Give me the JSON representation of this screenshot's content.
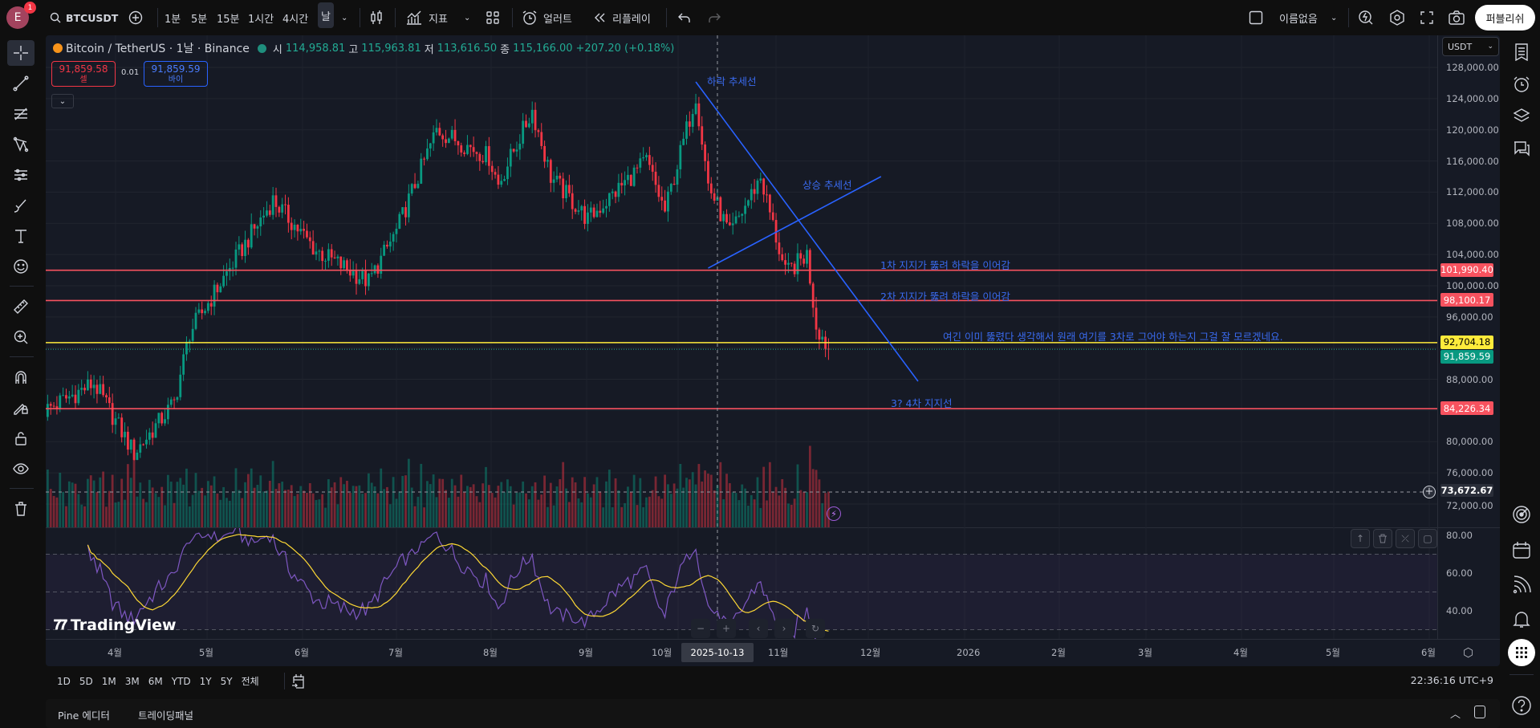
{
  "topbar": {
    "avatar_letter": "E",
    "notification_count": "1",
    "symbol": "BTCUSDT",
    "intervals": [
      "1분",
      "5분",
      "15분",
      "1시간",
      "4시간",
      "날"
    ],
    "active_interval": "날",
    "indicators_label": "지표",
    "alert_label": "얼러트",
    "replay_label": "리플레이",
    "layout_name": "이름없음",
    "publish_label": "퍼블리쉬"
  },
  "legend": {
    "title": "Bitcoin / TetherUS · 1날 · Binance",
    "open_label": "시",
    "open": "114,958.81",
    "high_label": "고",
    "high": "115,963.81",
    "low_label": "저",
    "low": "113,616.50",
    "close_label": "종",
    "close": "115,166.00",
    "change": "+207.20 (+0.18%)",
    "sell_price": "91,859.58",
    "sell_label": "셀",
    "spread": "0.01",
    "buy_price": "91,859.59",
    "buy_label": "바이"
  },
  "currency": "USDT",
  "price_axis": [
    "128,000.00",
    "124,000.00",
    "120,000.00",
    "116,000.00",
    "112,000.00",
    "108,000.00",
    "104,000.00",
    "100,000.00",
    "96,000.00",
    "88,000.00",
    "80,000.00",
    "76,000.00",
    "72,000.00"
  ],
  "rsi_axis": [
    "80.00",
    "60.00",
    "40.00"
  ],
  "time_axis": [
    "4월",
    "5월",
    "6월",
    "7월",
    "8월",
    "9월",
    "10월",
    "11월",
    "12월",
    "2026",
    "2월",
    "3월",
    "4월",
    "5월",
    "6월"
  ],
  "crosshair": {
    "date": "2025-10-13",
    "price": "73,672.67"
  },
  "colors": {
    "up": "#089981",
    "down": "#f23645",
    "support": "#f7525f",
    "highlight": "#ffeb3b",
    "trendline": "#2962ff",
    "rsi": "#7e57c2",
    "rsi_ma": "#fdd835"
  },
  "chart_data": {
    "type": "candlestick",
    "interval": "1D",
    "last_price": 91859.59,
    "price_range": [
      70000,
      130000
    ],
    "price_path": [
      [
        "2025-03-09",
        84000
      ],
      [
        "2025-03-25",
        87500
      ],
      [
        "2025-04-07",
        78500
      ],
      [
        "2025-04-20",
        85000
      ],
      [
        "2025-04-25",
        94000
      ],
      [
        "2025-05-10",
        103500
      ],
      [
        "2025-05-22",
        111000
      ],
      [
        "2025-06-05",
        104500
      ],
      [
        "2025-06-22",
        100500
      ],
      [
        "2025-07-01",
        107000
      ],
      [
        "2025-07-14",
        120000
      ],
      [
        "2025-07-31",
        116500
      ],
      [
        "2025-08-03",
        113000
      ],
      [
        "2025-08-14",
        122500
      ],
      [
        "2025-08-20",
        114000
      ],
      [
        "2025-09-01",
        108500
      ],
      [
        "2025-09-20",
        116000
      ],
      [
        "2025-09-26",
        109500
      ],
      [
        "2025-10-06",
        124500
      ],
      [
        "2025-10-10",
        113000
      ],
      [
        "2025-10-17",
        106500
      ],
      [
        "2025-10-27",
        114000
      ],
      [
        "2025-11-04",
        101500
      ],
      [
        "2025-11-11",
        104000
      ],
      [
        "2025-11-14",
        95000
      ],
      [
        "2025-11-18",
        91859.59
      ]
    ],
    "rsi_period": 14,
    "rsi_levels": [
      70,
      30
    ]
  },
  "drawings": {
    "downtrend": {
      "label": "하락 추세선",
      "from": [
        "2025-10-06",
        126150
      ],
      "to": [
        "2025-12-17",
        87750
      ]
    },
    "uptrend": {
      "label": "상승 추세선",
      "from": [
        "2025-10-10",
        102260
      ],
      "to": [
        "2025-12-05",
        114000
      ]
    },
    "levels": [
      {
        "price": 101990.4,
        "value": "101,990.40",
        "note": "1차 지지가 뚫려 하락을 이어감",
        "color": "#f7525f"
      },
      {
        "price": 98100.17,
        "value": "98,100.17",
        "note": "2차 지지가 뚫려 하락을 이어감",
        "color": "#f7525f"
      },
      {
        "price": 92704.18,
        "value": "92,704.18",
        "note": "여긴 이미 뚫렸다 생각해서 원래 여기를 3차로 그어야 하는지 그걸 잘 모르겠네요.",
        "color": "#ffeb3b"
      },
      {
        "price": 84226.34,
        "value": "84,226.34",
        "note": "3? 4차 지지선",
        "color": "#f7525f"
      }
    ],
    "current_price_label": "91,859.59"
  },
  "watermark": "TradingView",
  "bottom": {
    "ranges": [
      "1D",
      "5D",
      "1M",
      "3M",
      "6M",
      "YTD",
      "1Y",
      "5Y",
      "전체"
    ],
    "clock": "22:36:16 UTC+9",
    "tabs": [
      "Pine 에디터",
      "트레이딩패널"
    ]
  }
}
